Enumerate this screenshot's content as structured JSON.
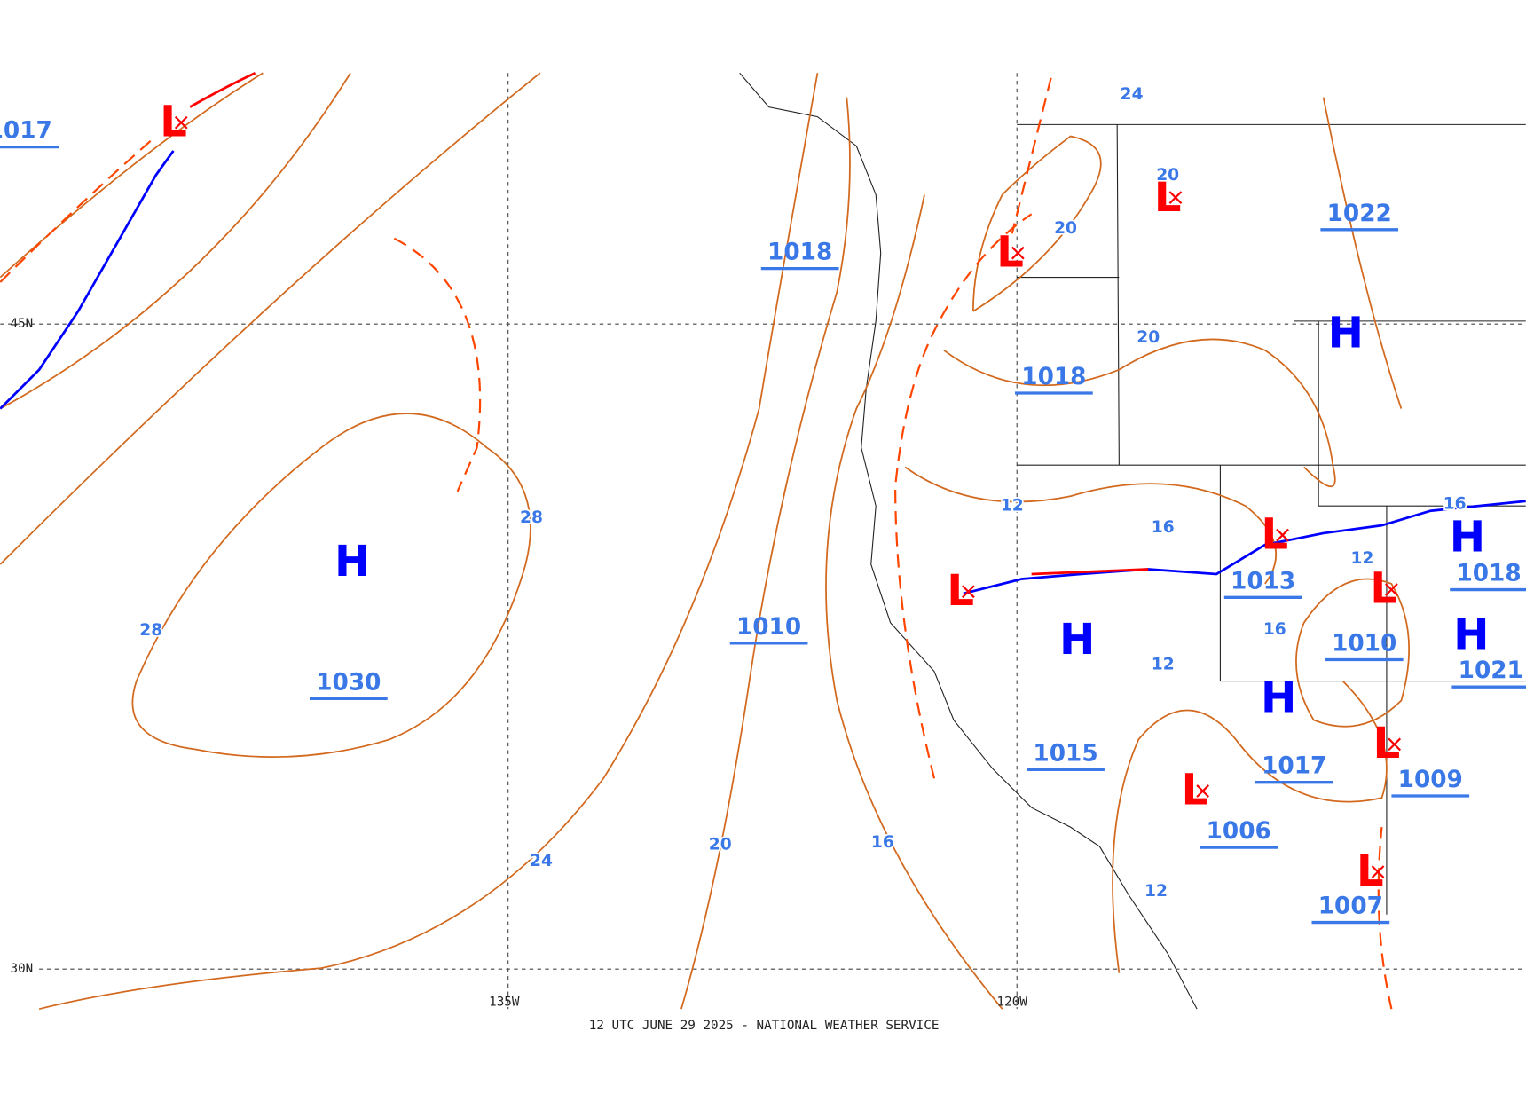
{
  "map": {
    "footer": "12 UTC JUNE 29 2025 - NATIONAL WEATHER SERVICE",
    "grid_labels": [
      "45N",
      "30N",
      "135W",
      "120W"
    ],
    "centers": [
      "L",
      "H",
      "L",
      "L",
      "H",
      "L",
      "H",
      "L",
      "L",
      "H",
      "H",
      "H",
      "L",
      "L",
      "L"
    ],
    "pressure_labels": [
      1017,
      1030,
      1018,
      1022,
      1018,
      1010,
      1015,
      1013,
      1010,
      1018,
      1021,
      1017,
      1006,
      1009,
      1007
    ],
    "isobar_labels": [
      28,
      28,
      24,
      20,
      20,
      20,
      20,
      16,
      16,
      16,
      16,
      12,
      12,
      12,
      12,
      24
    ]
  }
}
